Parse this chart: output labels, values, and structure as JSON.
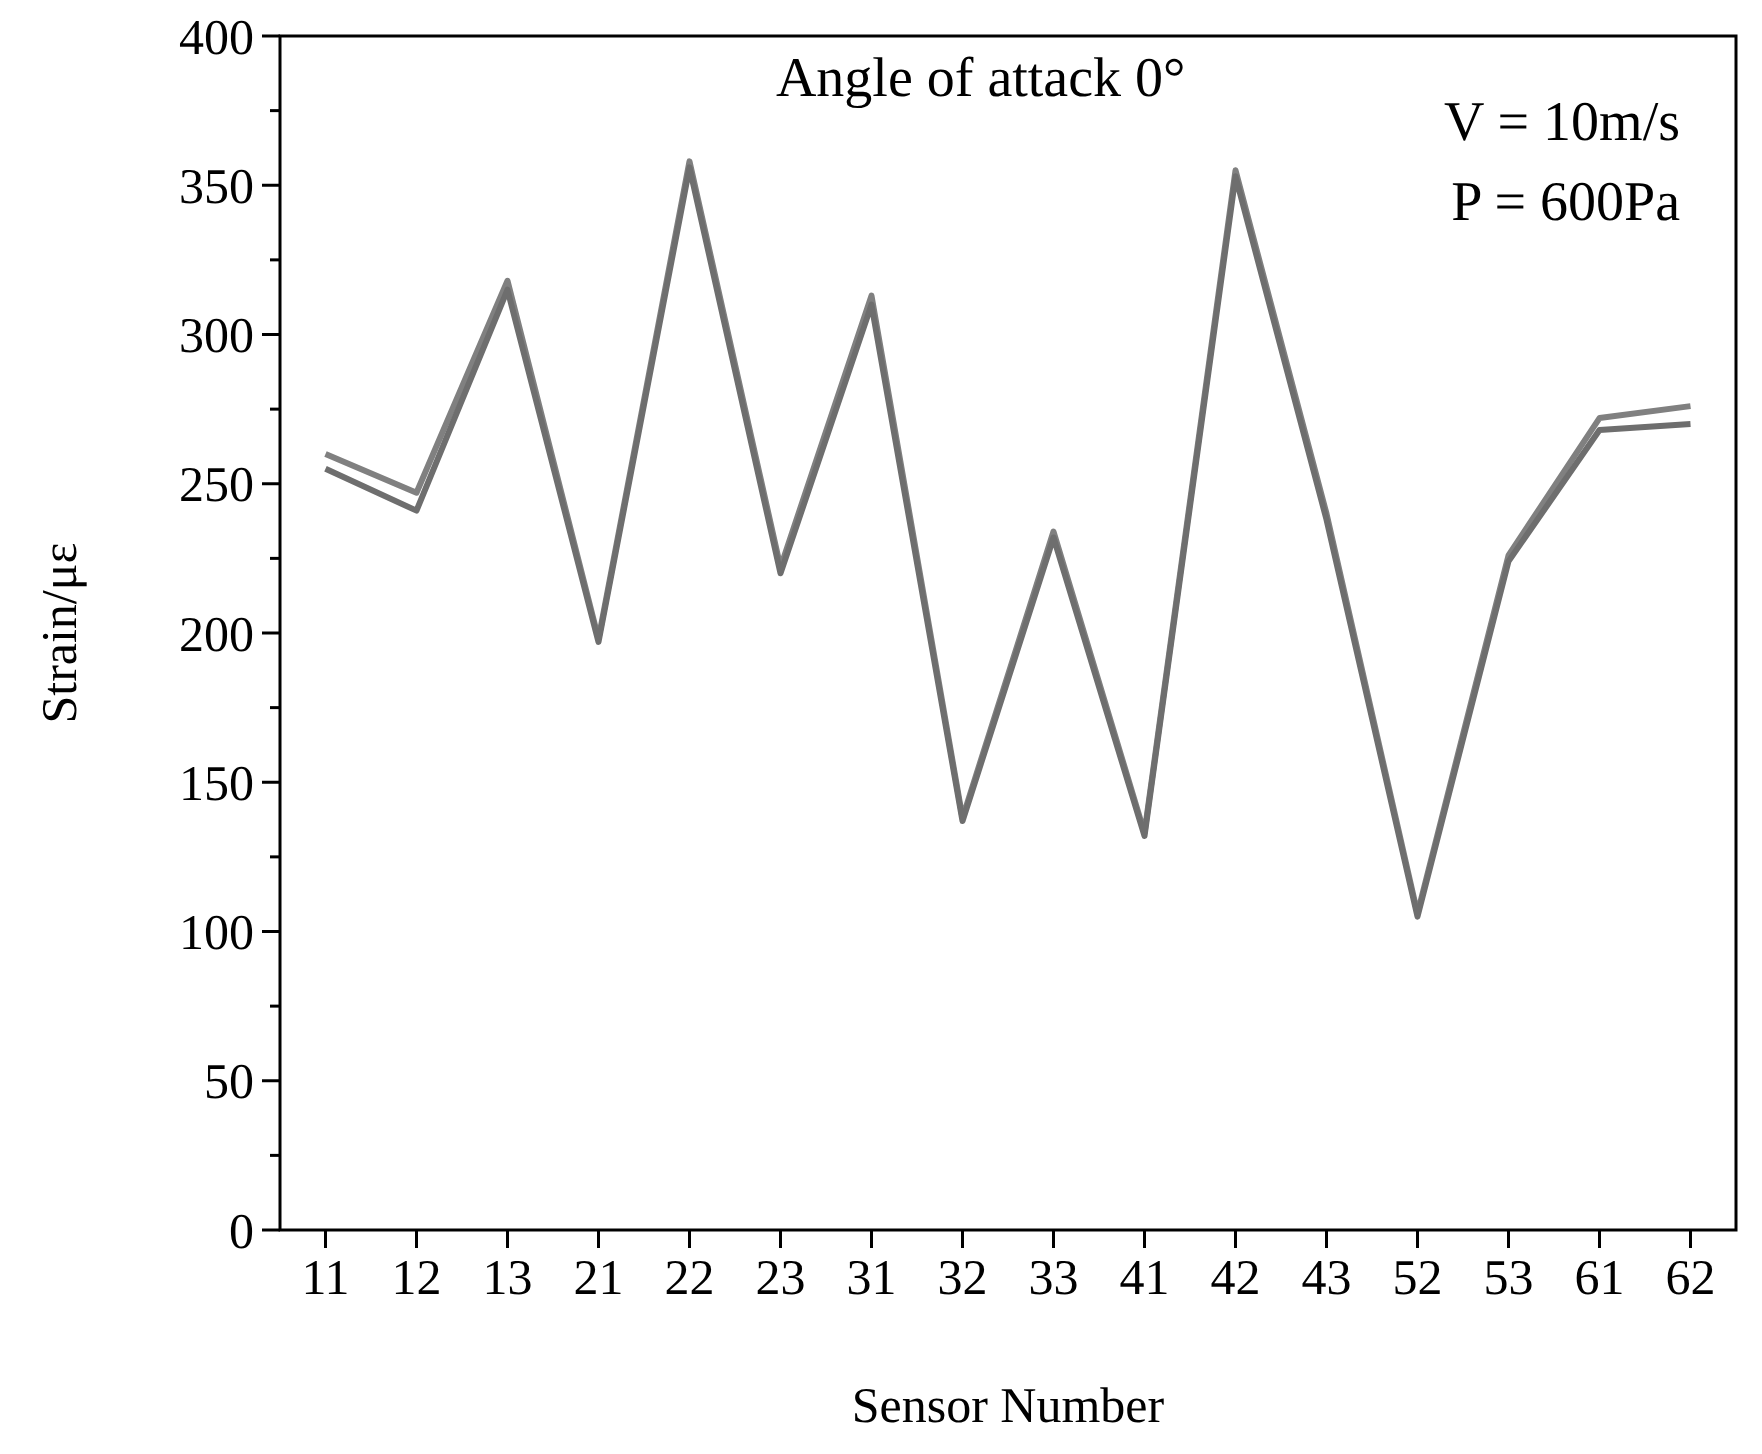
{
  "chart_data": {
    "type": "line",
    "xlabel": "Sensor Number",
    "ylabel": "Strain/με",
    "categories": [
      "11",
      "12",
      "13",
      "21",
      "22",
      "23",
      "31",
      "32",
      "33",
      "41",
      "42",
      "43",
      "52",
      "53",
      "61",
      "62"
    ],
    "series": [
      {
        "color": "#808080",
        "values": [
          260,
          247,
          318,
          198,
          358,
          222,
          313,
          138,
          234,
          133,
          355,
          240,
          106,
          226,
          272,
          276
        ]
      },
      {
        "color": "#6e6e6e",
        "values": [
          255,
          241,
          315,
          197,
          356,
          220,
          310,
          137,
          232,
          132,
          353,
          238,
          105,
          224,
          268,
          270
        ]
      }
    ],
    "ylim": [
      0,
      400
    ],
    "yticks": [
      0,
      {
        "value": 25,
        "label": null
      },
      50,
      {
        "value": 75,
        "label": null
      },
      100,
      {
        "value": 125,
        "label": null
      },
      150,
      {
        "value": 175,
        "label": null
      },
      200,
      {
        "value": 225,
        "label": null
      },
      250,
      {
        "value": 275,
        "label": null
      },
      300,
      {
        "value": 325,
        "label": null
      },
      350,
      {
        "value": 375,
        "label": null
      },
      400
    ],
    "annotations": [
      "Angle of attack 0°",
      "V = 10m/s",
      "P = 600Pa"
    ],
    "grid": false,
    "marker": "none",
    "line_style": "solid"
  }
}
